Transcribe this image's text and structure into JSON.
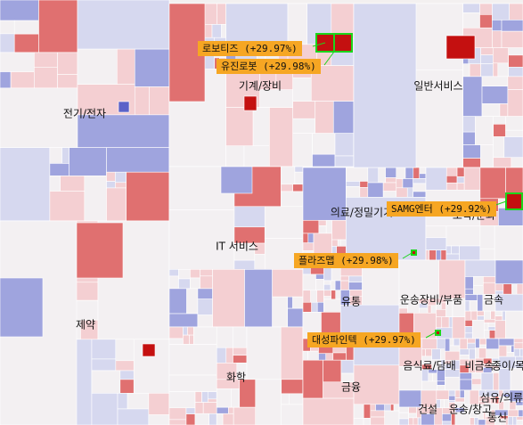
{
  "chart_data": {
    "type": "treemap",
    "colors": {
      "up_strong": "#c41010",
      "up_mid": "#e07070",
      "up_light": "#f4cfd2",
      "flat": "#f3f0f2",
      "down_light": "#d6d8ef",
      "down_mid": "#9fa4de",
      "down_strong": "#5b62c8",
      "highlight_border": "#1bd61b",
      "callout_bg": "#f6a623"
    },
    "sectors": [
      {
        "name": "전기/전자"
      },
      {
        "name": "기계/장비"
      },
      {
        "name": "일반서비스"
      },
      {
        "name": "제약"
      },
      {
        "name": "IT 서비스"
      },
      {
        "name": "의료/정밀기기"
      },
      {
        "name": "오락/문화"
      },
      {
        "name": "화학"
      },
      {
        "name": "유통"
      },
      {
        "name": "운송장비/부품"
      },
      {
        "name": "금속"
      },
      {
        "name": "음식료/담배"
      },
      {
        "name": "비금속"
      },
      {
        "name": "종이/목재"
      },
      {
        "name": "금융"
      },
      {
        "name": "건설"
      },
      {
        "name": "운송/창고"
      },
      {
        "name": "통신"
      },
      {
        "name": "섬유/의류"
      }
    ],
    "callouts": [
      {
        "label": "로보티즈 (+29.97%)",
        "change": 29.97,
        "sector": "기계/장비"
      },
      {
        "label": "유진로봇 (+29.98%)",
        "change": 29.98,
        "sector": "기계/장비"
      },
      {
        "label": "SAMG엔터 (+29.92%)",
        "change": 29.92,
        "sector": "오락/문화"
      },
      {
        "label": "플라즈맵 (+29.98%)",
        "change": 29.98,
        "sector": "의료/정밀기기"
      },
      {
        "label": "대성파인텍 (+29.97%)",
        "change": 29.97,
        "sector": "운송장비/부품"
      }
    ]
  }
}
